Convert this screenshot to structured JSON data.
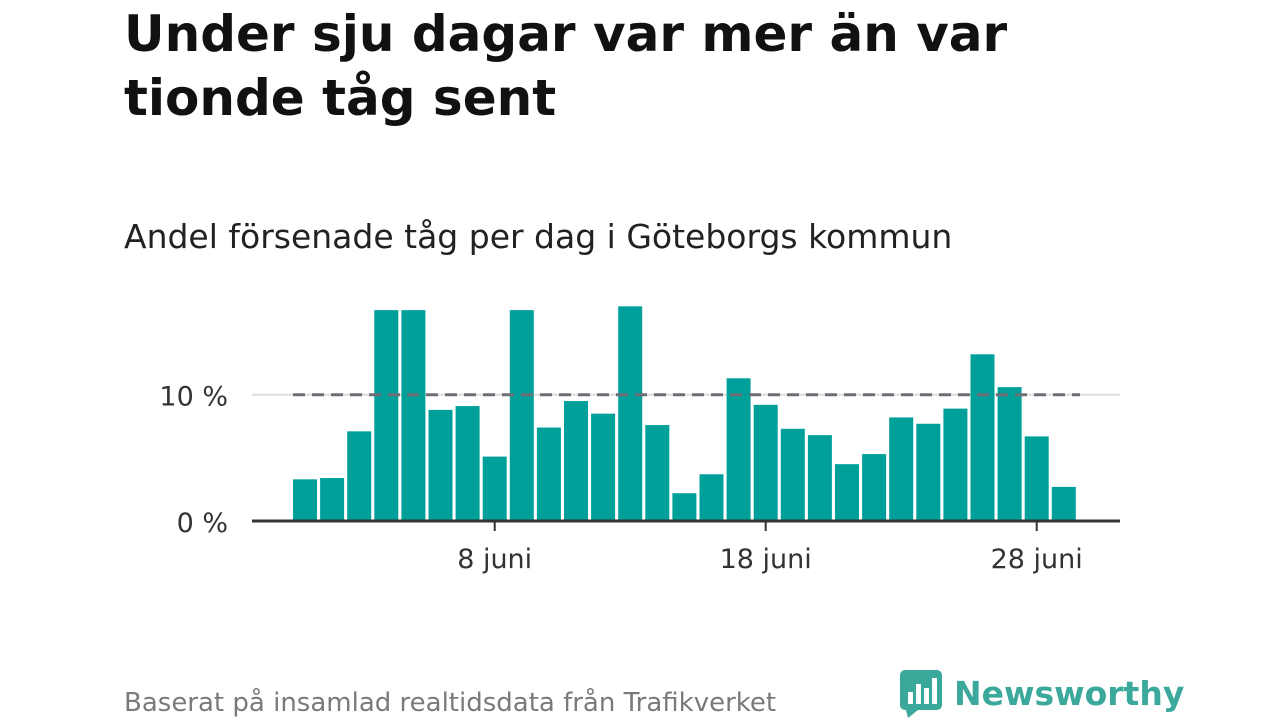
{
  "title": "Under sju dagar var mer än var tionde tåg sent",
  "subtitle": "Andel försenade tåg per dag i Göteborgs kommun",
  "footer": {
    "source": "Baserat på insamlad realtidsdata från Trafikverket",
    "brand": "Newsworthy"
  },
  "colors": {
    "bar": "#00a09a",
    "reference_line": "#6e6e76",
    "axis": "#333333",
    "grid": "#dddddd",
    "brand": "#3aa89a"
  },
  "chart_data": {
    "type": "bar",
    "title": "Under sju dagar var mer än var tionde tåg sent",
    "subtitle": "Andel försenade tåg per dag i Göteborgs kommun",
    "xlabel": "",
    "ylabel": "",
    "categories": [
      "1 juni",
      "2 juni",
      "3 juni",
      "4 juni",
      "5 juni",
      "6 juni",
      "7 juni",
      "8 juni",
      "9 juni",
      "10 juni",
      "11 juni",
      "12 juni",
      "13 juni",
      "14 juni",
      "15 juni",
      "16 juni",
      "17 juni",
      "18 juni",
      "19 juni",
      "20 juni",
      "21 juni",
      "22 juni",
      "23 juni",
      "24 juni",
      "25 juni",
      "26 juni",
      "27 juni",
      "28 juni",
      "29 juni"
    ],
    "values": [
      3.3,
      3.4,
      7.1,
      16.7,
      16.7,
      8.8,
      9.1,
      5.1,
      16.7,
      7.4,
      9.5,
      8.5,
      17.0,
      7.6,
      2.2,
      3.7,
      11.3,
      9.2,
      7.3,
      6.8,
      4.5,
      5.3,
      8.2,
      7.7,
      8.9,
      13.2,
      10.6,
      6.7,
      2.7
    ],
    "ylim": [
      0,
      17.5
    ],
    "yticks": [
      {
        "value": 0,
        "label": "0 %"
      },
      {
        "value": 10,
        "label": "10 %"
      }
    ],
    "xticks": [
      {
        "value": "8 juni",
        "label": "8 juni"
      },
      {
        "value": "18 juni",
        "label": "18 juni"
      },
      {
        "value": "28 juni",
        "label": "28 juni"
      }
    ],
    "reference_line": {
      "value": 10,
      "style": "dashed"
    },
    "grid": true,
    "legend": "none"
  }
}
